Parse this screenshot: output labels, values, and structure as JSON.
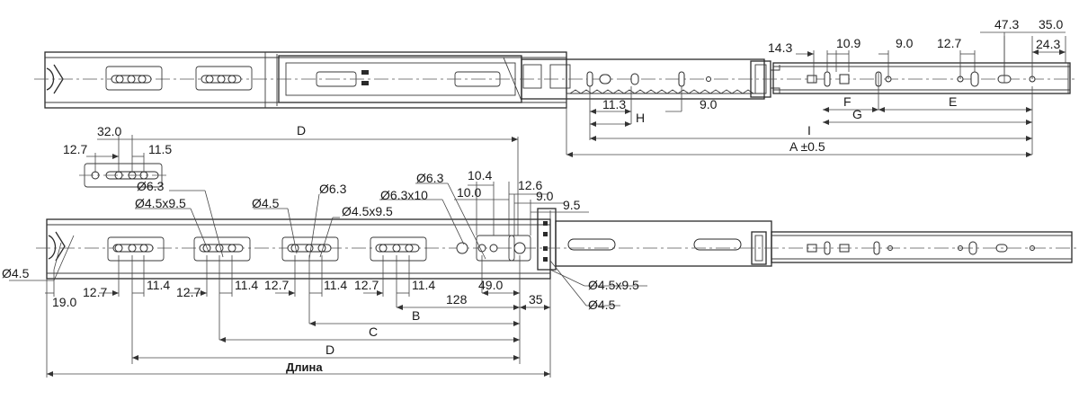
{
  "top_view": {
    "dims": {
      "d14_3": "14.3",
      "d10_9": "10.9",
      "d9_0": "9.0",
      "d12_7": "12.7",
      "d47_3": "47.3",
      "d35_0": "35.0",
      "d24_3": "24.3",
      "d11_3": "11.3",
      "H": "H",
      "d9_0b": "9.0",
      "F": "F",
      "E": "E",
      "G": "G",
      "I": "I",
      "A": "A ±0.5"
    }
  },
  "bottom_view": {
    "dims": {
      "d32_0": "32.0",
      "D_top": "D",
      "d12_7": "12.7",
      "d11_5": "11.5",
      "dia6_3_a": "Ø6.3",
      "dia4_5x9_5_a": "Ø4.5x9.5",
      "dia4_5_a": "Ø4.5",
      "dia6_3_b": "Ø6.3",
      "dia4_5x9_5_b": "Ø4.5x9.5",
      "dia6_3_c": "Ø6.3",
      "dia6_3x10": "Ø6.3x10",
      "d10_4": "10.4",
      "d10_0": "10.0",
      "d12_6": "12.6",
      "d9_0": "9.0",
      "d9_5": "9.5",
      "dia4_5_left": "Ø4.5",
      "d19_0": "19.0",
      "pair1_a": "12.7",
      "pair1_b": "11.4",
      "pair2_a": "12.7",
      "pair2_b": "11.4",
      "pair3_a": "12.7",
      "pair3_b": "11.4",
      "pair4_a": "12.7",
      "pair4_b": "11.4",
      "d49_0": "49.0",
      "d128": "128",
      "d35": "35",
      "dia4_5x9_5_r": "Ø4.5x9.5",
      "dia4_5_r": "Ø4.5",
      "B": "B",
      "C": "C",
      "D_bottom": "D",
      "length": "Длина"
    }
  }
}
